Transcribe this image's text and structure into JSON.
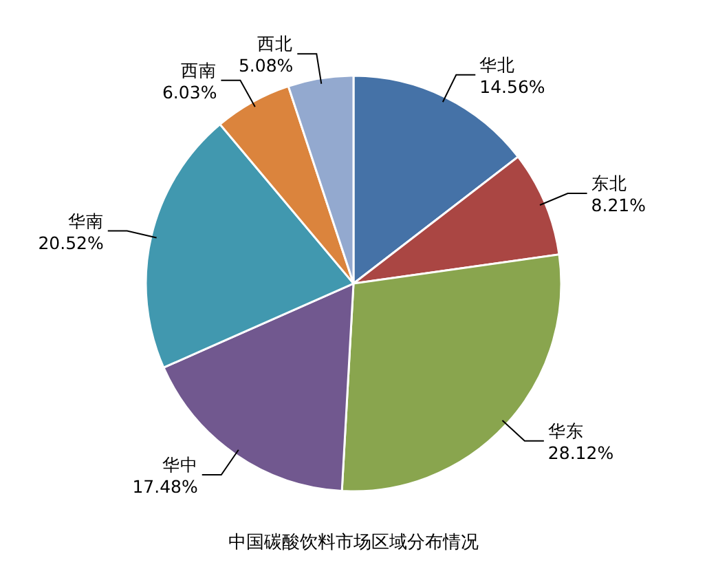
{
  "chart_data": {
    "type": "pie",
    "title": "中国碳酸饮料市场区域分布情况",
    "categories": [
      "华北",
      "东北",
      "华东",
      "华中",
      "华南",
      "西南",
      "西北"
    ],
    "values": [
      14.56,
      8.21,
      28.12,
      17.48,
      20.52,
      6.03,
      5.08
    ],
    "value_labels": [
      "14.56%",
      "8.21%",
      "28.12%",
      "17.48%",
      "20.52%",
      "6.03%",
      "5.08%"
    ],
    "colors": [
      "#4572a7",
      "#aa4643",
      "#89a54e",
      "#71588f",
      "#4198af",
      "#db843d",
      "#93a9cf"
    ]
  }
}
